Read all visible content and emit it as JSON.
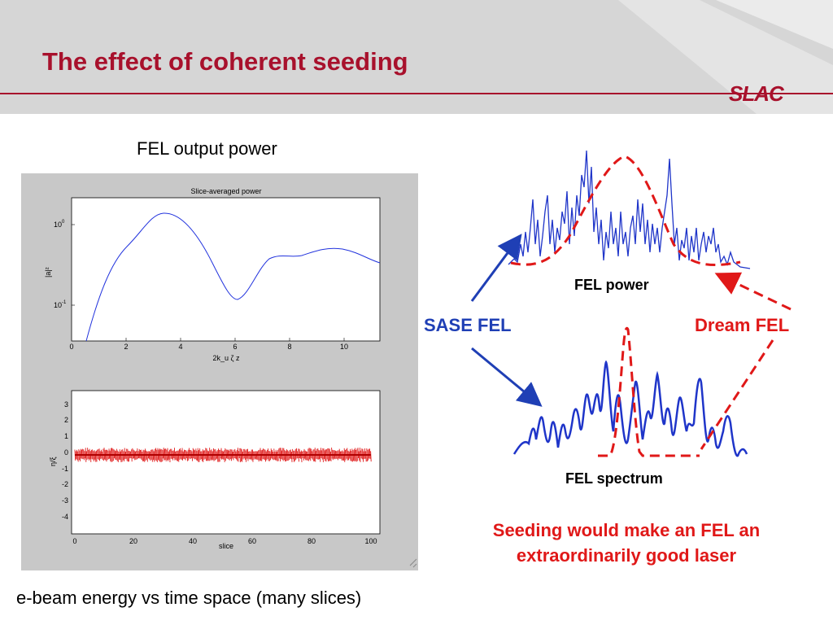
{
  "slide": {
    "title": "The effect of coherent seeding",
    "logo": "SLAC"
  },
  "left": {
    "caption_top": "FEL output power",
    "caption_bottom": "e-beam energy vs time space (many slices)",
    "top_plot": {
      "title": "Slice-averaged power",
      "ylabel": "|a|²",
      "xlabel": "2k_u ζ z",
      "x_ticks": [
        "0",
        "2",
        "4",
        "6",
        "8",
        "10"
      ],
      "y_tick_1": "10",
      "y_tick_1_exp": "0",
      "y_tick_2": "10",
      "y_tick_2_exp": "-1"
    },
    "bottom_plot": {
      "ylabel": "η/ξ",
      "xlabel": "slice",
      "x_ticks": [
        "0",
        "20",
        "40",
        "60",
        "80",
        "100"
      ],
      "y_ticks": [
        "3",
        "2",
        "1",
        "0",
        "-1",
        "-2",
        "-3",
        "-4"
      ]
    }
  },
  "right": {
    "fel_power_label": "FEL power",
    "fel_spectrum_label": "FEL spectrum",
    "sase_label": "SASE FEL",
    "dream_label": "Dream FEL",
    "note_line1": "Seeding would make an FEL an",
    "note_line2": "extraordinarily good laser"
  },
  "colors": {
    "title_red": "#a8112c",
    "sase_blue": "#1f3fb5",
    "dream_red": "#e01818"
  }
}
